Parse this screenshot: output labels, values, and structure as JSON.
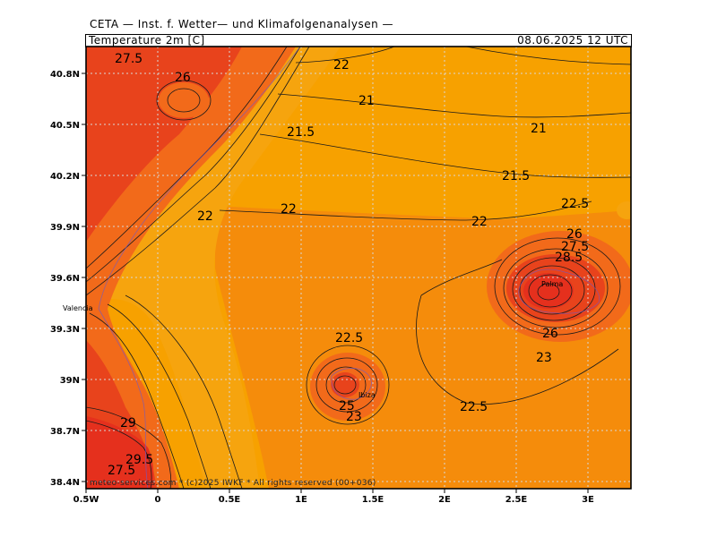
{
  "header": {
    "institute": "CETA — Inst. f. Wetter— und Klimafolgenanalysen —",
    "parameter": "Temperature 2m [C]",
    "valid_time": "08.06.2025 12 UTC"
  },
  "footer": {
    "copyright": "meteo-services.com * (c)2025 IWKF * All rights reserved (00+036)"
  },
  "axes": {
    "y_ticks": [
      "40.8N",
      "40.5N",
      "40.2N",
      "39.9N",
      "39.6N",
      "39.3N",
      "39N",
      "38.7N",
      "38.4N"
    ],
    "x_ticks": [
      "0.5W",
      "0",
      "0.5E",
      "1E",
      "1.5E",
      "2E",
      "2.5E",
      "3E"
    ],
    "lat_range": [
      38.4,
      41.0
    ],
    "lon_range": [
      -0.5,
      3.3
    ]
  },
  "places": {
    "valencia": "Valencia",
    "ibiza": "Ibiza",
    "palma": "Palma"
  },
  "contour_labels": [
    "27.5",
    "26",
    "22",
    "21",
    "21.5",
    "21",
    "21.5",
    "22",
    "22",
    "22",
    "22.5",
    "26",
    "27.5",
    "28.5",
    "26",
    "23",
    "22.5",
    "25",
    "23",
    "22.5",
    "29",
    "29.5",
    "27.5"
  ],
  "colors": {
    "sea": "#f7a100",
    "warm_sea": "#f58c0b",
    "land_warm": "#f26a1a",
    "land_hot": "#e8431c",
    "land_hottest": "#e5301d",
    "coastal_band": "#f6a40e",
    "contour": "#1a1a1a",
    "grid": "#d8d8d8"
  }
}
